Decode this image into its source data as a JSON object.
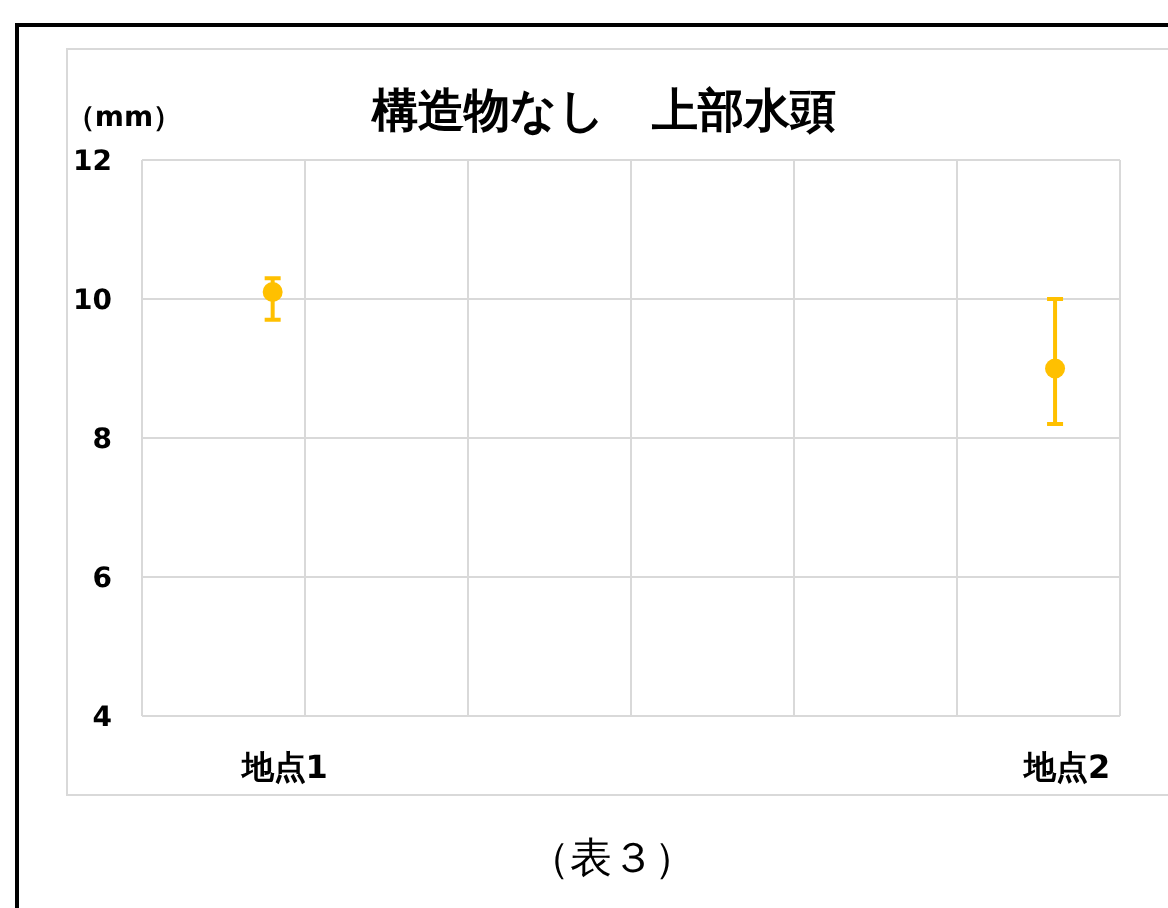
{
  "chart_data": {
    "type": "scatter",
    "title": "構造物なし　上部水頭",
    "ylabel": "（mm）",
    "categories": [
      "地点1",
      "地点2"
    ],
    "series": [
      {
        "color": "#ffc000",
        "values": [
          10.1,
          9.0
        ],
        "errors": [
          [
            9.7,
            10.3
          ],
          [
            8.2,
            10.0
          ]
        ]
      }
    ],
    "ylim": [
      4,
      12
    ],
    "yticks": [
      4,
      6,
      8,
      10,
      12
    ],
    "grid": true,
    "marker": "circle",
    "annotations": [
      "（表３）"
    ]
  }
}
